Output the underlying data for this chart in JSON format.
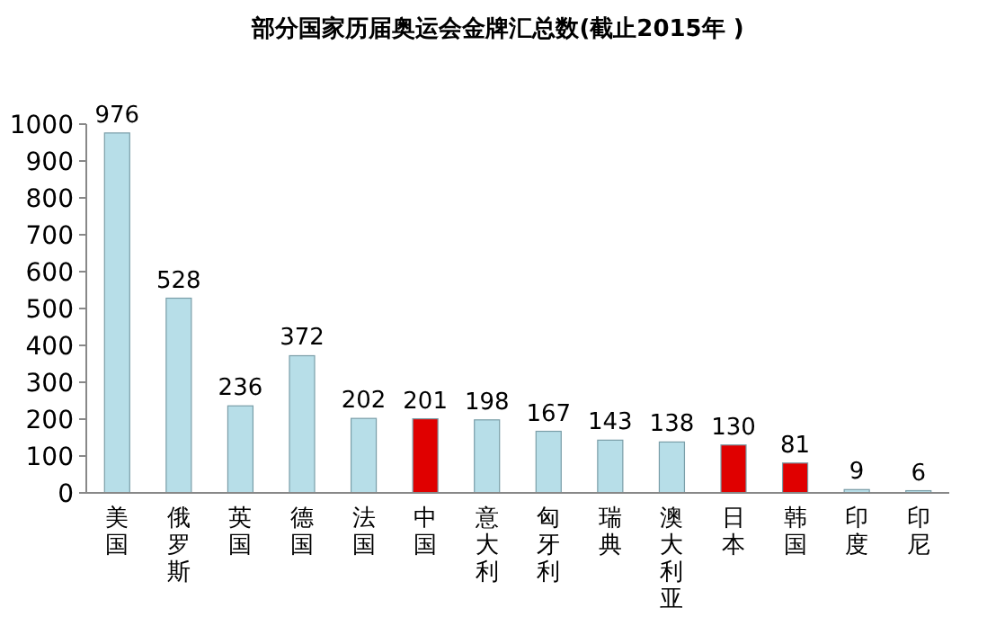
{
  "chart_data": {
    "type": "bar",
    "title": "部分国家历届奥运会金牌汇总数(截止2015年 )",
    "categories": [
      "美国",
      "俄罗斯",
      "英国",
      "德国",
      "法国",
      "中国",
      "意大利",
      "匈牙利",
      "瑞典",
      "澳大利亚",
      "日本",
      "韩国",
      "印度",
      "印尼"
    ],
    "values": [
      976,
      528,
      236,
      372,
      202,
      201,
      198,
      167,
      143,
      138,
      130,
      81,
      9,
      6
    ],
    "colors": [
      "#b7dee8",
      "#b7dee8",
      "#b7dee8",
      "#b7dee8",
      "#b7dee8",
      "#e00000",
      "#b7dee8",
      "#b7dee8",
      "#b7dee8",
      "#b7dee8",
      "#e00000",
      "#e00000",
      "#b7dee8",
      "#b7dee8"
    ],
    "ylim": [
      0,
      1000
    ],
    "yticks": [
      0,
      100,
      200,
      300,
      400,
      500,
      600,
      700,
      800,
      900,
      1000
    ],
    "data_labels": true,
    "grid": false
  }
}
